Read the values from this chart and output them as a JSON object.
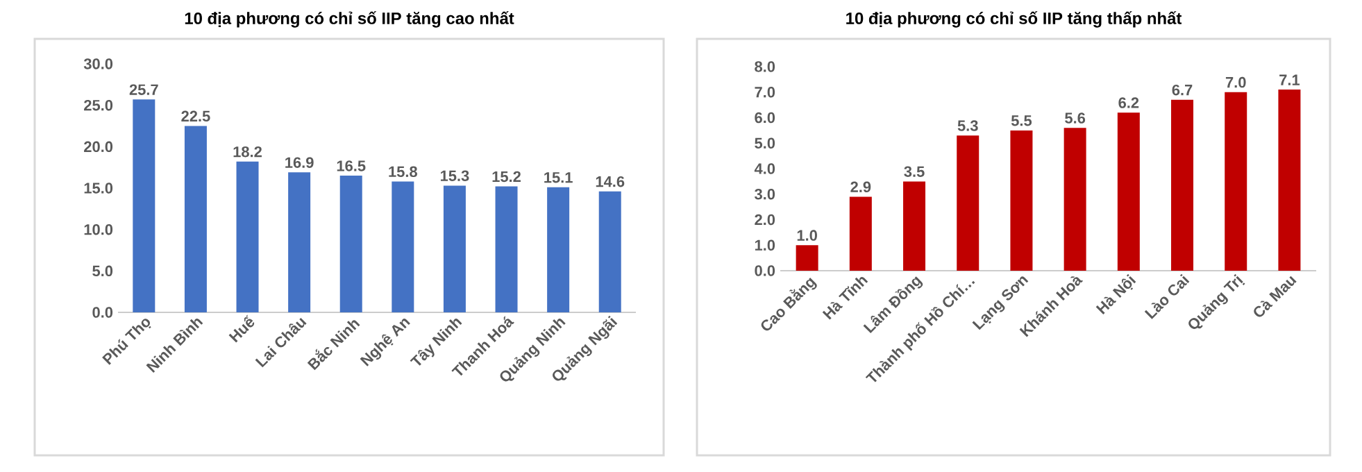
{
  "chart_data": [
    {
      "type": "bar",
      "title": "10 địa phương có chỉ số IIP tăng cao nhất",
      "categories": [
        "Phú Thọ",
        "Ninh Bình",
        "Huế",
        "Lai Châu",
        "Bắc Ninh",
        "Nghệ An",
        "Tây Ninh",
        "Thanh Hoá",
        "Quảng Ninh",
        "Quảng Ngãi"
      ],
      "values": [
        25.7,
        22.5,
        18.2,
        16.9,
        16.5,
        15.8,
        15.3,
        15.2,
        15.1,
        14.6
      ],
      "color": "#4472c4",
      "ylim": [
        0,
        30
      ],
      "yticks": [
        {
          "value": 0,
          "label": "0.0"
        },
        {
          "value": 5,
          "label": "5.0"
        },
        {
          "value": 10,
          "label": "10.0"
        },
        {
          "value": 15,
          "label": "15.0"
        },
        {
          "value": 20,
          "label": "20.0"
        },
        {
          "value": 25,
          "label": "25.0"
        },
        {
          "value": 30,
          "label": "30.0"
        }
      ],
      "data_labels": true
    },
    {
      "type": "bar",
      "title": "10 địa phương có chỉ số IIP tăng thấp nhất",
      "categories": [
        "Cao Bằng",
        "Hà Tĩnh",
        "Lâm Đồng",
        "Thành phố Hồ Chí…",
        "Lạng Sơn",
        "Khánh Hoà",
        "Hà Nội",
        "Lào Cai",
        "Quảng Trị",
        "Cà Mau"
      ],
      "values": [
        1.0,
        2.9,
        3.5,
        5.3,
        5.5,
        5.6,
        6.2,
        6.7,
        7.0,
        7.1
      ],
      "value_labels": [
        "1.0",
        "2.9",
        "3.5",
        "5.3",
        "5.5",
        "5.6",
        "6.2",
        "6.7",
        "7.0",
        "7.1"
      ],
      "color": "#c00000",
      "ylim": [
        0,
        8
      ],
      "yticks": [
        {
          "value": 0,
          "label": "0.0"
        },
        {
          "value": 1,
          "label": "1.0"
        },
        {
          "value": 2,
          "label": "2.0"
        },
        {
          "value": 3,
          "label": "3.0"
        },
        {
          "value": 4,
          "label": "4.0"
        },
        {
          "value": 5,
          "label": "5.0"
        },
        {
          "value": 6,
          "label": "6.0"
        },
        {
          "value": 7,
          "label": "7.0"
        },
        {
          "value": 8,
          "label": "8.0"
        }
      ]
    }
  ]
}
